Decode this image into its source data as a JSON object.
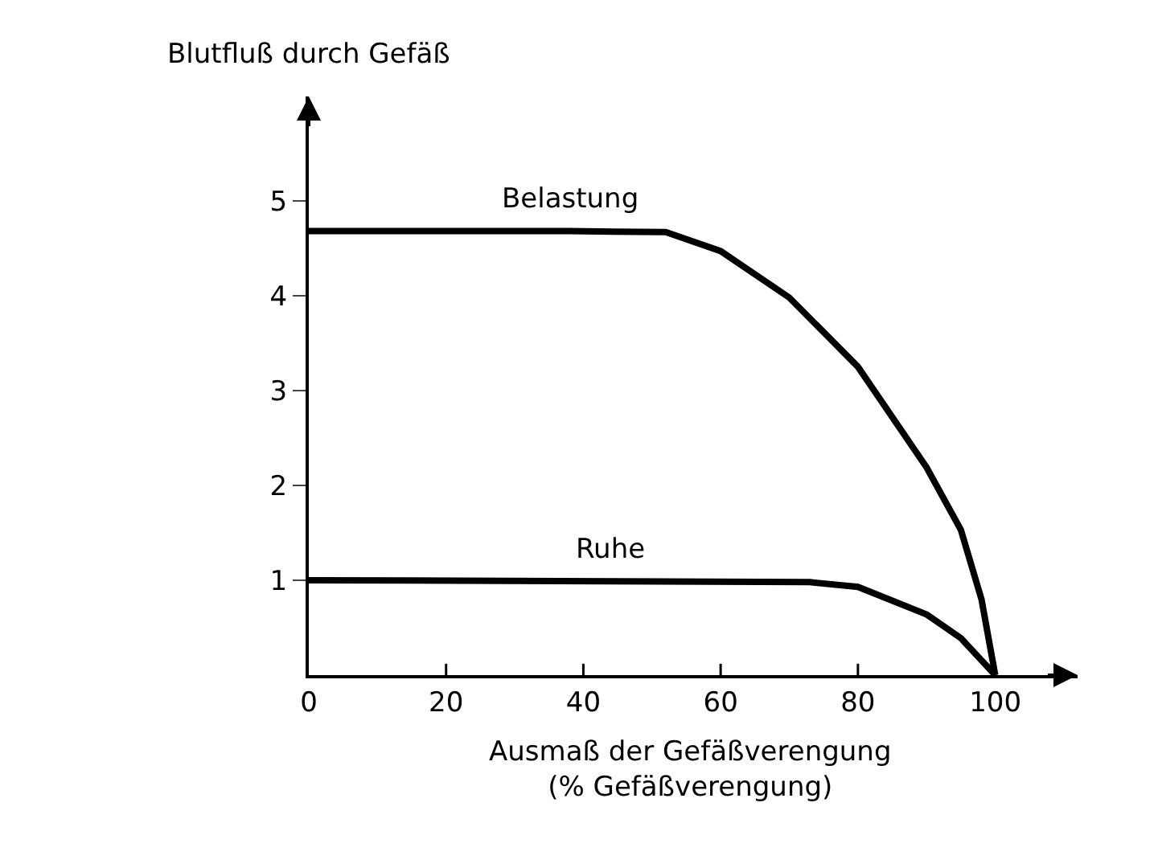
{
  "chart_data": {
    "type": "line",
    "xlabel": "Ausmaß der Gefäßverengung\n(% Gefäßverengung)",
    "ylabel": "Blutfluß durch Gefäß",
    "series": [
      {
        "name": "Belastung",
        "color": "#000000",
        "x": [
          0,
          38,
          52,
          60,
          70,
          80,
          90,
          95,
          98,
          100
        ],
        "values": [
          4.68,
          4.68,
          4.67,
          4.47,
          3.98,
          3.25,
          2.19,
          1.53,
          0.8,
          0
        ]
      },
      {
        "name": "Ruhe",
        "color": "#000000",
        "x": [
          0,
          44,
          73,
          80,
          90,
          95,
          100
        ],
        "values": [
          1.0,
          0.99,
          0.98,
          0.93,
          0.64,
          0.39,
          0
        ]
      }
    ],
    "xlim": [
      0,
      112
    ],
    "ylim": [
      0,
      6.1
    ],
    "xticks": [
      0,
      20,
      40,
      60,
      80,
      100
    ],
    "yticks": [
      1,
      2,
      3,
      4,
      5
    ],
    "legend": false,
    "marker": "none",
    "line_style": "solid"
  }
}
